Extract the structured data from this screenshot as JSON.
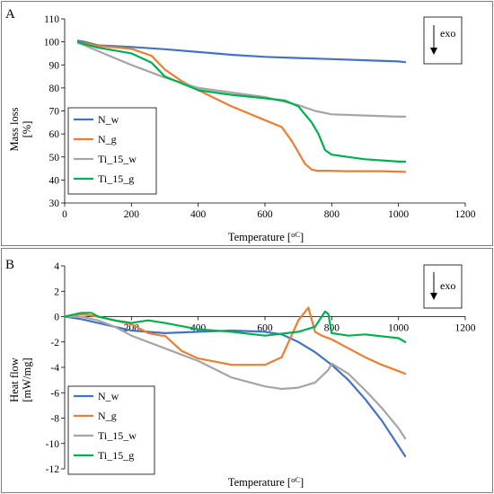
{
  "chart_data": [
    {
      "type": "line",
      "panel_letter": "A",
      "exo_label": "exo",
      "xlabel_main": "Temperature [",
      "xlabel_unit": "oC",
      "xlabel_close": "]",
      "ylabel": [
        "Mass loss",
        "[%]"
      ],
      "xlim": [
        0,
        1200
      ],
      "ylim": [
        30,
        110
      ],
      "xticks": [
        0,
        200,
        400,
        600,
        800,
        1000,
        1200
      ],
      "yticks": [
        30,
        40,
        50,
        60,
        70,
        80,
        90,
        100,
        110
      ],
      "legend_position": "bottom-left",
      "grid": false,
      "series": [
        {
          "name": "N_w",
          "color": "#4472C4",
          "x": [
            40,
            60,
            100,
            200,
            300,
            400,
            500,
            600,
            700,
            800,
            900,
            1000,
            1020
          ],
          "y": [
            100.5,
            100,
            98.5,
            97.8,
            96.8,
            95.6,
            94.4,
            93.5,
            93,
            92.5,
            92,
            91.5,
            91.2
          ]
        },
        {
          "name": "N_g",
          "color": "#ED7D31",
          "x": [
            40,
            60,
            100,
            200,
            260,
            300,
            350,
            400,
            500,
            600,
            650,
            680,
            700,
            720,
            740,
            755,
            780,
            850,
            950,
            1020
          ],
          "y": [
            100,
            99.5,
            98.3,
            97,
            94,
            88,
            83,
            79,
            72,
            66,
            63,
            57,
            52,
            47,
            44.5,
            44,
            44,
            43.8,
            43.8,
            43.5
          ]
        },
        {
          "name": "Ti_15_w",
          "color": "#A5A5A5",
          "x": [
            40,
            60,
            100,
            200,
            300,
            400,
            500,
            600,
            700,
            750,
            800,
            900,
            1000,
            1020
          ],
          "y": [
            99.5,
            98.5,
            96,
            90,
            84.5,
            80,
            78,
            76,
            72.5,
            70,
            68.5,
            68,
            67.5,
            67.5
          ]
        },
        {
          "name": "Ti_15_g",
          "color": "#00B050",
          "x": [
            40,
            60,
            100,
            200,
            260,
            300,
            400,
            500,
            600,
            660,
            700,
            740,
            760,
            780,
            800,
            850,
            900,
            1000,
            1020
          ],
          "y": [
            100,
            99,
            97.5,
            95,
            91,
            85,
            79,
            77,
            75.5,
            74.5,
            72,
            65,
            60,
            53,
            51,
            50,
            49,
            48,
            48
          ]
        }
      ]
    },
    {
      "type": "line",
      "panel_letter": "B",
      "exo_label": "exo",
      "xlabel_main": "Temperature [",
      "xlabel_unit": "oC",
      "xlabel_close": "]",
      "ylabel": [
        "Heat flow",
        "[mW/mg]"
      ],
      "xlim": [
        0,
        1200
      ],
      "ylim": [
        -12,
        4
      ],
      "xticks": [
        200,
        400,
        600,
        800,
        1000,
        1200
      ],
      "yticks": [
        -12,
        -10,
        -8,
        -6,
        -4,
        -2,
        0,
        2,
        4
      ],
      "legend_position": "bottom-left",
      "grid": false,
      "series": [
        {
          "name": "N_w",
          "color": "#4472C4",
          "x": [
            0,
            50,
            100,
            150,
            200,
            300,
            400,
            500,
            600,
            650,
            700,
            750,
            800,
            850,
            900,
            950,
            1000,
            1020
          ],
          "y": [
            0,
            -0.2,
            -0.5,
            -0.8,
            -1.1,
            -1.3,
            -1.2,
            -1.1,
            -1.2,
            -1.4,
            -2,
            -2.8,
            -3.8,
            -5,
            -6.5,
            -8.2,
            -10.2,
            -11
          ]
        },
        {
          "name": "N_g",
          "color": "#ED7D31",
          "x": [
            0,
            50,
            100,
            200,
            250,
            290,
            300,
            350,
            400,
            500,
            600,
            650,
            700,
            730,
            750,
            770,
            800,
            850,
            900,
            950,
            1000,
            1020
          ],
          "y": [
            0,
            0.2,
            0,
            -0.6,
            -1.3,
            -1.5,
            -1.5,
            -2.7,
            -3.3,
            -3.8,
            -3.8,
            -3.2,
            -0.3,
            0.7,
            -1.2,
            -1.5,
            -1.8,
            -2.5,
            -3.2,
            -3.8,
            -4.3,
            -4.5
          ]
        },
        {
          "name": "Ti_15_w",
          "color": "#A5A5A5",
          "x": [
            0,
            50,
            100,
            150,
            200,
            300,
            400,
            500,
            600,
            650,
            700,
            750,
            790,
            800,
            850,
            900,
            950,
            1000,
            1020
          ],
          "y": [
            0,
            0,
            -0.3,
            -0.8,
            -1.5,
            -2.5,
            -3.5,
            -4.8,
            -5.5,
            -5.7,
            -5.6,
            -5.2,
            -4.2,
            -3.7,
            -4.5,
            -5.8,
            -7.2,
            -8.8,
            -9.6
          ]
        },
        {
          "name": "Ti_15_g",
          "color": "#00B050",
          "x": [
            0,
            50,
            80,
            100,
            150,
            200,
            250,
            300,
            400,
            500,
            600,
            700,
            750,
            780,
            790,
            800,
            850,
            900,
            1000,
            1020
          ],
          "y": [
            0,
            0.3,
            0.3,
            0,
            -0.3,
            -0.5,
            -0.3,
            -0.5,
            -1,
            -1.2,
            -1.5,
            -1.2,
            -0.8,
            0.4,
            0.2,
            -1.3,
            -1.5,
            -1.4,
            -1.7,
            -2
          ]
        }
      ]
    }
  ]
}
